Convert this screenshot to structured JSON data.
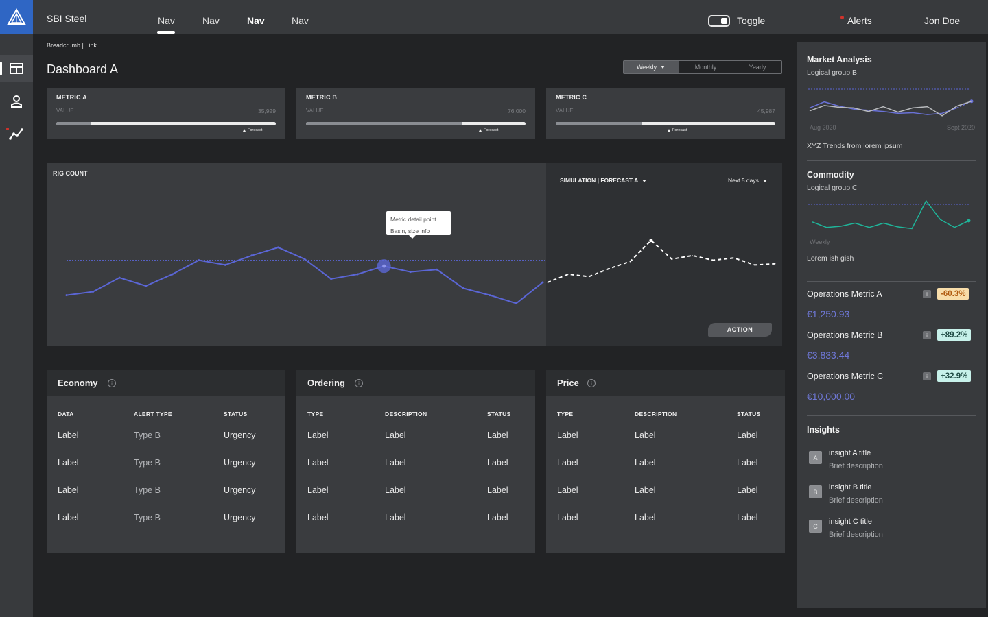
{
  "header": {
    "app_title": "SBI Steel",
    "nav": [
      "Nav",
      "Nav",
      "Nav",
      "Nav"
    ],
    "toggle_label": "Toggle",
    "alerts_label": "Alerts",
    "user": "Jon Doe"
  },
  "breadcrumb": "Breadcrumb | Link",
  "page_title": "Dashboard A",
  "period": {
    "options": [
      "Weekly",
      "Monthly",
      "Yearly"
    ],
    "selected": "Weekly"
  },
  "metrics": [
    {
      "label": "METRIC A",
      "sub": "VALUE",
      "value": "35,929",
      "progress": 0.16,
      "forecast": "Forecast"
    },
    {
      "label": "METRIC B",
      "sub": "VALUE",
      "value": "76,000",
      "progress": 0.71,
      "forecast": "Forecast"
    },
    {
      "label": "METRIC C",
      "sub": "VALUE",
      "value": "45,987",
      "progress": 0.39,
      "forecast": "Forecast"
    }
  ],
  "rig": {
    "title": "RIG COUNT",
    "simulation_select": "SIMULATION | FORECAST A",
    "range_select": "Next 5 days",
    "tooltip_line1": "Metric detail point",
    "tooltip_line2": "Basin, size info",
    "action_label": "ACTION"
  },
  "tables": [
    {
      "title": "Economy",
      "columns": [
        "DATA",
        "ALERT TYPE",
        "STATUS"
      ],
      "rows": [
        [
          "Label",
          "Type B",
          "Urgency"
        ],
        [
          "Label",
          "Type B",
          "Urgency"
        ],
        [
          "Label",
          "Type B",
          "Urgency"
        ],
        [
          "Label",
          "Type B",
          "Urgency"
        ]
      ]
    },
    {
      "title": "Ordering",
      "columns": [
        "TYPE",
        "DESCRIPTION",
        "STATUS"
      ],
      "rows": [
        [
          "Label",
          "Label",
          "Label"
        ],
        [
          "Label",
          "Label",
          "Label"
        ],
        [
          "Label",
          "Label",
          "Label"
        ],
        [
          "Label",
          "Label",
          "Label"
        ]
      ]
    },
    {
      "title": "Price",
      "columns": [
        "TYPE",
        "DESCRIPTION",
        "STATUS"
      ],
      "rows": [
        [
          "Label",
          "Label",
          "Label"
        ],
        [
          "Label",
          "Label",
          "Label"
        ],
        [
          "Label",
          "Label",
          "Label"
        ],
        [
          "Label",
          "Label",
          "Label"
        ]
      ]
    }
  ],
  "right_panel": {
    "market": {
      "title": "Market Analysis",
      "subtitle": "Logical group B",
      "x_start": "Aug 2020",
      "x_end": "Sept 2020",
      "note": "XYZ Trends from lorem ipsum"
    },
    "commodity": {
      "title": "Commodity",
      "subtitle": "Logical group C",
      "x_label": "Weekly",
      "note": "Lorem ish gish"
    },
    "operations": [
      {
        "label": "Operations Metric A",
        "value": "€1,250.93",
        "change": "-60.3%",
        "trend": "negative"
      },
      {
        "label": "Operations Metric B",
        "value": "€3,833.44",
        "change": "+89.2%",
        "trend": "positive"
      },
      {
        "label": "Operations Metric C",
        "value": "€10,000.00",
        "change": "+32.9%",
        "trend": "positive"
      }
    ],
    "insights": {
      "title": "Insights",
      "items": [
        {
          "badge": "A",
          "title": "insight A title",
          "desc": "Brief description"
        },
        {
          "badge": "B",
          "title": "insight B title",
          "desc": "Brief description"
        },
        {
          "badge": "C",
          "title": "insight C title",
          "desc": "Brief description"
        }
      ]
    }
  },
  "colors": {
    "accent": "#5b66d6",
    "teal": "#1fb59a",
    "logo_bg": "#2f66c4",
    "alert_dot": "#d0332c",
    "negative_badge": "#f8ddaa",
    "positive_badge": "#c7f1ea"
  },
  "icons": [
    "logo-triangle-icon",
    "dashboard-icon",
    "user-icon",
    "analytics-icon",
    "info-icon",
    "caret-down-icon"
  ],
  "chart_data": [
    {
      "type": "line",
      "title": "RIG COUNT",
      "note": "unlabeled axes; values on a 0-100 relative scale",
      "series": [
        {
          "values": [
            22,
            25,
            37,
            30,
            40,
            52,
            48,
            56,
            63,
            53,
            36,
            40,
            47,
            42,
            44,
            28,
            22,
            15,
            33
          ]
        },
        {
          "values": [
            33,
            40,
            38,
            45,
            51,
            69,
            53,
            56,
            52,
            54,
            48,
            49
          ]
        }
      ],
      "reference_line": 52,
      "highlight_index": 12
    },
    {
      "type": "line",
      "title": "Market Analysis",
      "x_range": [
        "Aug 2020",
        "Sept 2020"
      ],
      "series": [
        {
          "values": [
            40,
            60,
            46,
            36,
            32,
            28,
            22,
            24,
            18,
            22,
            40,
            62
          ]
        },
        {
          "values": [
            30,
            48,
            42,
            40,
            28,
            44,
            26,
            40,
            44,
            14,
            46,
            62
          ]
        }
      ]
    },
    {
      "type": "line",
      "title": "Commodity",
      "x_label": "Weekly",
      "series": [
        {
          "values": [
            30,
            12,
            16,
            26,
            12,
            26,
            14,
            8,
            100,
            38,
            12,
            34
          ]
        }
      ]
    }
  ]
}
